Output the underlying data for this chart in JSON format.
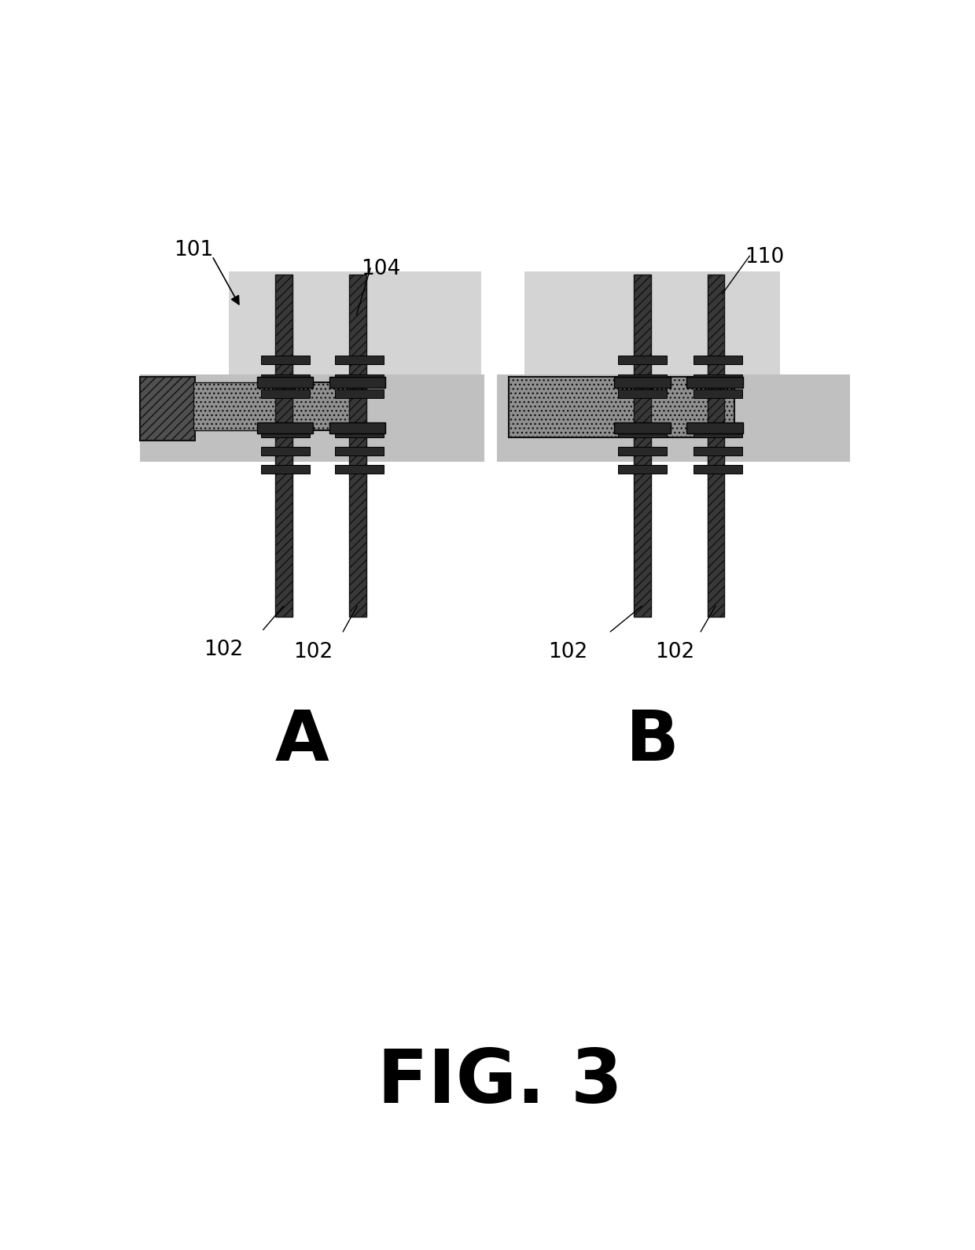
{
  "bg_color": "#ffffff",
  "fig_label": "FIG. 3",
  "panel_A_label": "A",
  "panel_B_label": "B",
  "label_101": "101",
  "label_102": "102",
  "label_104": "104",
  "label_110": "110",
  "color_very_light": "#d4d4d4",
  "color_light": "#c0c0c0",
  "color_mid": "#909090",
  "color_dark": "#505050",
  "color_very_dark": "#282828",
  "color_rod": "#383838",
  "color_pipe_bg": "#b8b8b8"
}
